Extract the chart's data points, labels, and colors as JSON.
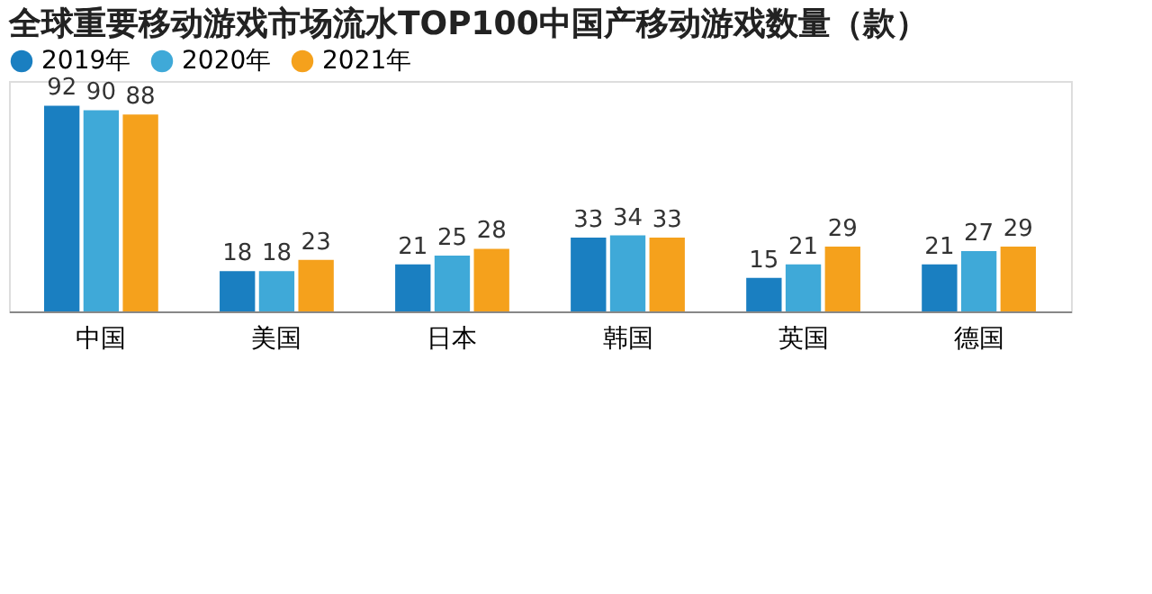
{
  "chart_data": {
    "type": "bar",
    "title": "全球重要移动游戏市场流水TOP100中国产移动游戏数量（款）",
    "categories": [
      "中国",
      "美国",
      "日本",
      "韩国",
      "英国",
      "德国"
    ],
    "series": [
      {
        "name": "2019年",
        "color": "#1a7fc1",
        "values": [
          92,
          18,
          21,
          33,
          15,
          21
        ]
      },
      {
        "name": "2020年",
        "color": "#3fa9d8",
        "values": [
          90,
          18,
          25,
          34,
          21,
          27
        ]
      },
      {
        "name": "2021年",
        "color": "#f5a11c",
        "values": [
          88,
          23,
          28,
          33,
          29,
          29
        ]
      }
    ],
    "data_labels": true,
    "legend": "top left",
    "grid": false
  }
}
